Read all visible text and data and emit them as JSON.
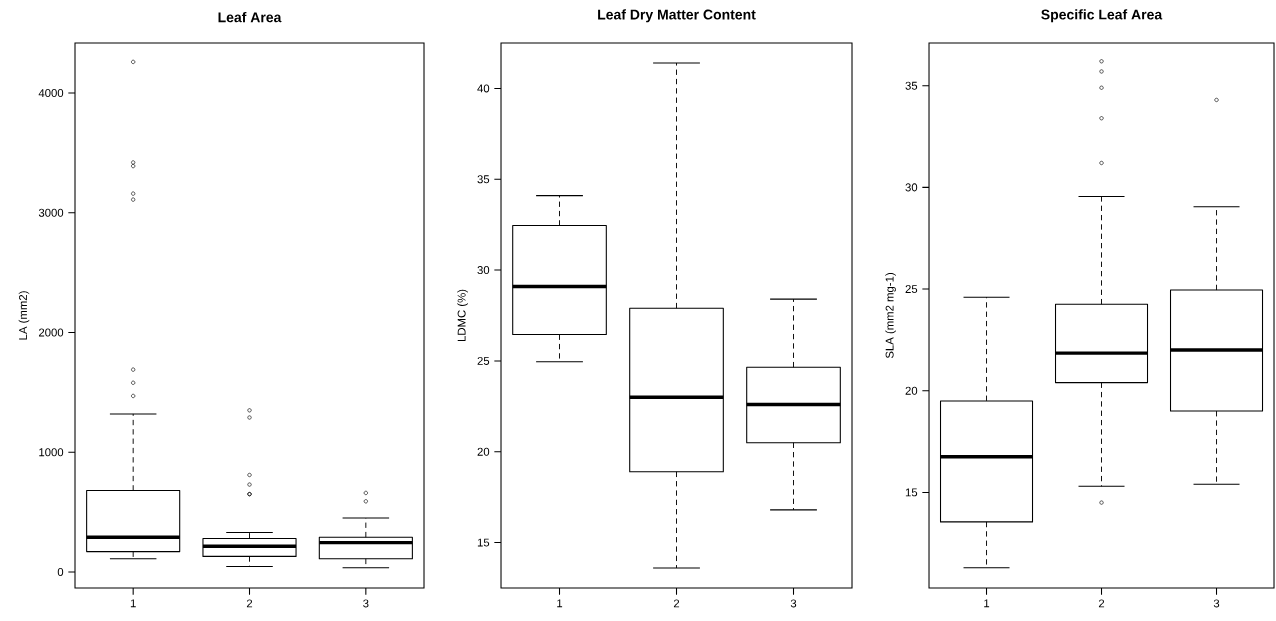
{
  "chart_data": [
    {
      "type": "box",
      "title": "Leaf Area",
      "ylabel": "LA (mm2)",
      "categories": [
        "1",
        "2",
        "3"
      ],
      "ylim": [
        -134,
        4418
      ],
      "yticks": [
        0,
        1000,
        2000,
        3000,
        4000
      ],
      "marker": "circle",
      "boxes": [
        {
          "low": 110,
          "q1": 170,
          "median": 290,
          "q3": 680,
          "high": 1320,
          "outliers": [
            4260,
            3420,
            3390,
            3160,
            3110,
            1690,
            1580,
            1470
          ]
        },
        {
          "low": 45,
          "q1": 130,
          "median": 215,
          "q3": 280,
          "high": 330,
          "outliers": [
            1350,
            1290,
            810,
            730,
            650,
            650
          ]
        },
        {
          "low": 35,
          "q1": 110,
          "median": 245,
          "q3": 290,
          "high": 450,
          "outliers": [
            660,
            590
          ]
        }
      ]
    },
    {
      "type": "box",
      "title": "Leaf Dry Matter Content",
      "ylabel": "LDMC (%)",
      "categories": [
        "1",
        "2",
        "3"
      ],
      "ylim": [
        12.5,
        42.5
      ],
      "yticks": [
        15,
        20,
        25,
        30,
        35,
        40
      ],
      "marker": "circle",
      "boxes": [
        {
          "low": 24.95,
          "q1": 26.45,
          "median": 29.1,
          "q3": 32.45,
          "high": 34.1
        },
        {
          "low": 13.6,
          "q1": 18.9,
          "median": 23.0,
          "q3": 27.9,
          "high": 41.4
        },
        {
          "low": 16.8,
          "q1": 20.5,
          "median": 22.6,
          "q3": 24.65,
          "high": 28.4
        }
      ]
    },
    {
      "type": "box",
      "title": "Specific Leaf Area",
      "ylabel": "SLA (mm2 mg-1)",
      "categories": [
        "1",
        "2",
        "3"
      ],
      "ylim": [
        10.3,
        37.1
      ],
      "yticks": [
        15,
        20,
        25,
        30,
        35
      ],
      "marker": "circle",
      "boxes": [
        {
          "low": 11.3,
          "q1": 13.55,
          "median": 16.75,
          "q3": 19.5,
          "high": 24.6
        },
        {
          "low": 15.3,
          "q1": 20.4,
          "median": 21.85,
          "q3": 24.25,
          "high": 29.55,
          "outliers": [
            36.2,
            35.7,
            34.9,
            33.4,
            31.2,
            14.5
          ]
        },
        {
          "low": 15.4,
          "q1": 19.0,
          "median": 22.0,
          "q3": 24.95,
          "high": 29.05,
          "outliers": [
            34.3
          ]
        }
      ]
    }
  ]
}
